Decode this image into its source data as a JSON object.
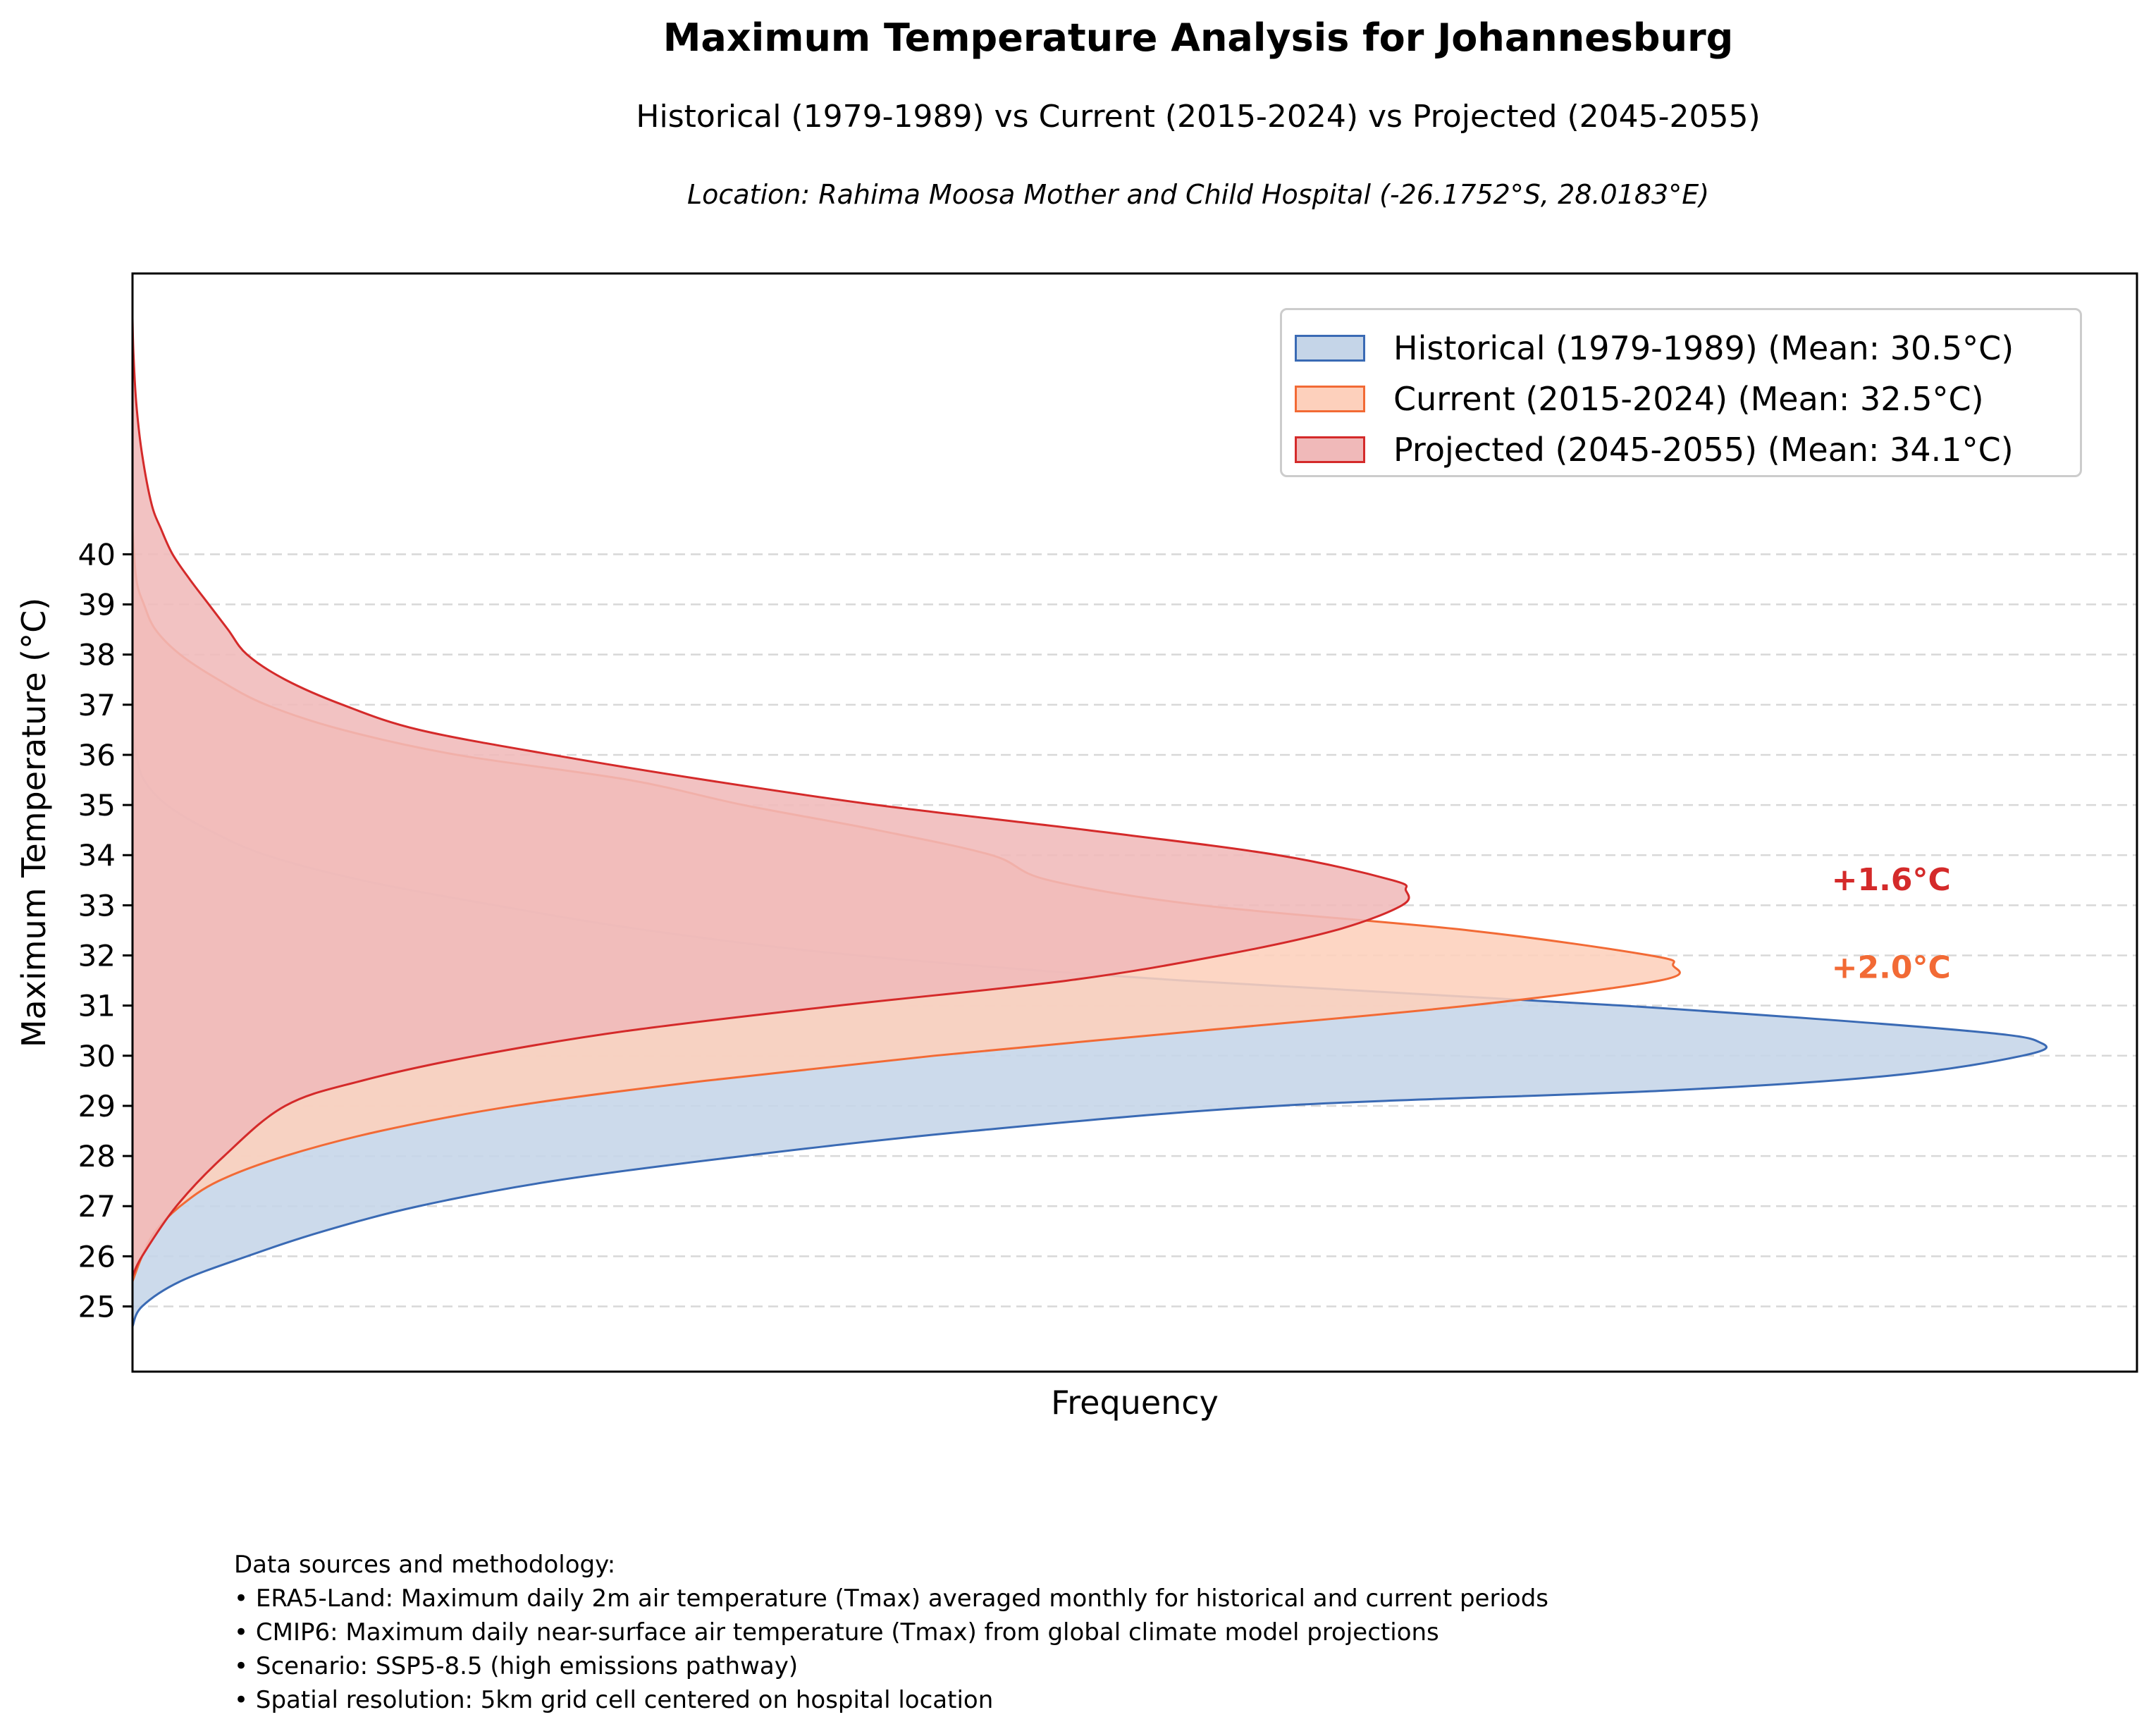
{
  "title": "Maximum Temperature Analysis for Johannesburg",
  "subtitle": "Historical (1979-1989) vs Current (2015-2024) vs Projected (2045-2055)",
  "location": "Location: Rahima Moosa Mother and Child Hospital (-26.1752°S, 28.0183°E)",
  "chart_data": {
    "type": "area",
    "orientation": "horizontal-density",
    "xlabel": "Frequency",
    "ylabel": "Maximum Temperature (°C)",
    "yticks": [
      25,
      26,
      27,
      28,
      29,
      30,
      31,
      32,
      33,
      34,
      35,
      36,
      37,
      38,
      39,
      40
    ],
    "ylim": [
      23.7,
      45.6
    ],
    "xlim": [
      0,
      1.05
    ],
    "grid": "horizontal dashed",
    "legend_position": "top-right",
    "series": [
      {
        "name": "Historical (1979-1989) (Mean: 30.5°C)",
        "color": "#3a6ab4",
        "fill": "#c5d5e8",
        "points": [
          [
            24.6,
            0
          ],
          [
            25.0,
            0.005
          ],
          [
            25.5,
            0.025
          ],
          [
            26.0,
            0.06
          ],
          [
            26.5,
            0.1
          ],
          [
            27.0,
            0.15
          ],
          [
            27.5,
            0.22
          ],
          [
            28.0,
            0.32
          ],
          [
            28.5,
            0.44
          ],
          [
            29.0,
            0.6
          ],
          [
            29.3,
            0.8
          ],
          [
            29.6,
            0.92
          ],
          [
            30.0,
            0.99
          ],
          [
            30.25,
            1.0
          ],
          [
            30.5,
            0.96
          ],
          [
            31.0,
            0.78
          ],
          [
            31.5,
            0.55
          ],
          [
            32.0,
            0.38
          ],
          [
            32.5,
            0.27
          ],
          [
            33.0,
            0.19
          ],
          [
            33.5,
            0.12
          ],
          [
            34.0,
            0.07
          ],
          [
            34.5,
            0.04
          ],
          [
            35.0,
            0.018
          ],
          [
            35.5,
            0.006
          ],
          [
            36.0,
            0.002
          ],
          [
            36.5,
            0
          ]
        ]
      },
      {
        "name": "Current (2015-2024) (Mean: 32.5°C)",
        "color": "#f26a35",
        "fill": "#fdd0bc",
        "points": [
          [
            25.5,
            0
          ],
          [
            26.0,
            0.005
          ],
          [
            26.5,
            0.012
          ],
          [
            27.0,
            0.025
          ],
          [
            27.5,
            0.045
          ],
          [
            28.0,
            0.08
          ],
          [
            28.5,
            0.13
          ],
          [
            29.0,
            0.2
          ],
          [
            29.5,
            0.3
          ],
          [
            30.0,
            0.42
          ],
          [
            30.5,
            0.56
          ],
          [
            31.0,
            0.7
          ],
          [
            31.5,
            0.8
          ],
          [
            31.8,
            0.807
          ],
          [
            32.0,
            0.795
          ],
          [
            32.5,
            0.7
          ],
          [
            33.0,
            0.56
          ],
          [
            33.5,
            0.48
          ],
          [
            34.0,
            0.45
          ],
          [
            34.5,
            0.39
          ],
          [
            35.0,
            0.32
          ],
          [
            35.5,
            0.26
          ],
          [
            36.0,
            0.17
          ],
          [
            36.5,
            0.11
          ],
          [
            37.0,
            0.07
          ],
          [
            37.5,
            0.045
          ],
          [
            38.0,
            0.025
          ],
          [
            38.5,
            0.012
          ],
          [
            39.0,
            0.006
          ],
          [
            39.5,
            0.002
          ],
          [
            40.5,
            0
          ]
        ]
      },
      {
        "name": "Projected (2045-2055) (Mean: 34.1°C)",
        "color": "#d42a2a",
        "fill": "#f0b9b9",
        "points": [
          [
            25.6,
            0
          ],
          [
            26.0,
            0.005
          ],
          [
            27.0,
            0.023
          ],
          [
            28.0,
            0.048
          ],
          [
            29.0,
            0.08
          ],
          [
            29.5,
            0.12
          ],
          [
            30.0,
            0.18
          ],
          [
            30.5,
            0.26
          ],
          [
            31.0,
            0.37
          ],
          [
            31.5,
            0.49
          ],
          [
            32.0,
            0.57
          ],
          [
            32.5,
            0.63
          ],
          [
            33.0,
            0.665
          ],
          [
            33.3,
            0.667
          ],
          [
            33.5,
            0.66
          ],
          [
            34.0,
            0.6
          ],
          [
            34.5,
            0.5
          ],
          [
            35.0,
            0.39
          ],
          [
            35.5,
            0.3
          ],
          [
            36.0,
            0.22
          ],
          [
            36.5,
            0.15
          ],
          [
            37.0,
            0.11
          ],
          [
            37.5,
            0.08
          ],
          [
            38.0,
            0.06
          ],
          [
            38.5,
            0.05
          ],
          [
            39.0,
            0.04
          ],
          [
            39.5,
            0.03
          ],
          [
            40.0,
            0.021
          ],
          [
            40.5,
            0.015
          ],
          [
            41.0,
            0.01
          ],
          [
            42.0,
            0.005
          ],
          [
            43.0,
            0.002
          ],
          [
            44.0,
            0.0005
          ],
          [
            44.7,
            0
          ]
        ]
      }
    ],
    "annotations": [
      {
        "text": "+1.6°C",
        "color": "#d42a2a",
        "x": 0.89,
        "y": 33.3
      },
      {
        "text": "+2.0°C",
        "color": "#f26a35",
        "x": 0.89,
        "y": 31.55
      }
    ]
  },
  "notes": [
    "Data sources and methodology:",
    "• ERA5-Land: Maximum daily 2m air temperature (Tmax) averaged monthly for historical and current periods",
    "• CMIP6: Maximum daily near-surface air temperature (Tmax) from global climate model projections",
    "• Scenario: SSP5-8.5 (high emissions pathway)",
    "• Spatial resolution: 5km grid cell centered on hospital location"
  ]
}
